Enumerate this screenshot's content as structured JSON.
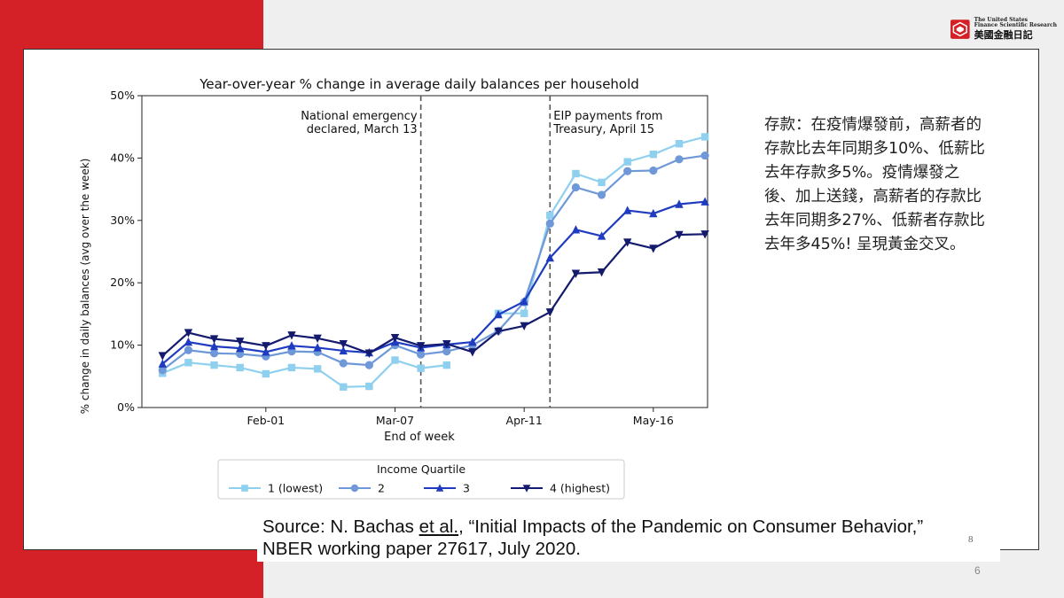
{
  "logo": {
    "en_line1": "The United States",
    "en_line2": "Finance Scientific Research",
    "zh": "美國金融日記",
    "color": "#d42027"
  },
  "side_text": "存款：在疫情爆發前，高薪者的存款比去年同期多10%、低薪比去年存款多5%。疫情爆發之後、加上送錢，高薪者的存款比去年同期多27%、低薪者存款比去年多45%! 呈現黃金交叉。",
  "source": {
    "prefix": "Source: N. Bachas ",
    "etal": "et al.",
    "suffix": ", “Initial Impacts of the Pandemic on Consumer Behavior,”",
    "line2": "NBER working paper 27617, July 2020.",
    "ref": "8"
  },
  "page_number": "6",
  "chart_data": {
    "type": "line",
    "title": "Year-over-year % change in average daily balances per household",
    "xlabel": "End of week",
    "ylabel": "% change in daily balances (avg over the week)",
    "ylim": [
      0,
      50
    ],
    "yticks": [
      0,
      10,
      20,
      30,
      40,
      50
    ],
    "ytick_labels": [
      "0%",
      "10%",
      "20%",
      "30%",
      "40%",
      "50%"
    ],
    "xlim": [
      -0.8,
      21.1
    ],
    "xticks": [
      {
        "pos": 4,
        "label": "Feb-01"
      },
      {
        "pos": 9,
        "label": "Mar-07"
      },
      {
        "pos": 14,
        "label": "Apr-11"
      },
      {
        "pos": 19,
        "label": "May-16"
      }
    ],
    "annotations": [
      {
        "x": 10,
        "lines": [
          "National emergency",
          "declared, March 13"
        ],
        "anchor": "end"
      },
      {
        "x": 15,
        "lines": [
          "EIP payments from",
          "Treasury, April 15"
        ],
        "anchor": "start"
      }
    ],
    "vlines": [
      10,
      15
    ],
    "legend": {
      "title": "Income Quartile",
      "position": "bottom"
    },
    "x": [
      0,
      1,
      2,
      3,
      4,
      5,
      6,
      7,
      8,
      9,
      10,
      11,
      12,
      13,
      14,
      15,
      16,
      17,
      18,
      19,
      20,
      21
    ],
    "series": [
      {
        "name": "1 (lowest)",
        "color": "#8fd0ee",
        "marker": "square",
        "values": [
          5.5,
          7.2,
          6.8,
          6.4,
          5.4,
          6.4,
          6.2,
          3.3,
          3.4,
          7.6,
          6.3,
          6.8,
          null,
          null,
          15.1,
          null,
          null,
          null,
          null,
          null,
          null,
          null
        ]
      },
      {
        "name": "2",
        "color": "#6f98d8",
        "marker": "circle",
        "values": [
          6.0,
          9.2,
          8.7,
          8.6,
          8.2,
          9.0,
          8.9,
          7.1,
          6.8,
          10.0,
          8.5,
          9.0,
          10.0,
          12.3,
          16.9,
          29.5,
          35.3,
          34.1,
          37.9,
          38.0,
          39.8,
          40.4
        ]
      },
      {
        "name": "3",
        "color": "#1f3cc0",
        "marker": "triangle-up",
        "values": [
          7.0,
          10.5,
          9.8,
          9.5,
          8.9,
          9.9,
          9.6,
          9.1,
          8.8,
          10.5,
          9.6,
          10.1,
          10.5,
          14.9,
          17.0,
          24.0,
          28.5,
          27.5,
          31.6,
          31.1,
          32.6,
          33.0
        ]
      },
      {
        "name": "4 (highest)",
        "color": "#141b6e",
        "marker": "triangle-down",
        "values": [
          8.3,
          12.0,
          11.0,
          10.6,
          9.9,
          11.6,
          11.1,
          10.2,
          8.7,
          11.2,
          9.9,
          10.2,
          8.9,
          12.2,
          13.1,
          15.3,
          21.5,
          21.7,
          26.5,
          25.5,
          27.7,
          27.8
        ]
      }
    ],
    "extra_series1_upper": [
      null,
      null,
      null,
      null,
      null,
      null,
      null,
      null,
      null,
      null,
      null,
      null,
      null,
      15.1,
      15.1,
      30.8,
      37.5,
      36.1,
      39.4,
      40.6,
      42.3,
      43.4
    ]
  }
}
